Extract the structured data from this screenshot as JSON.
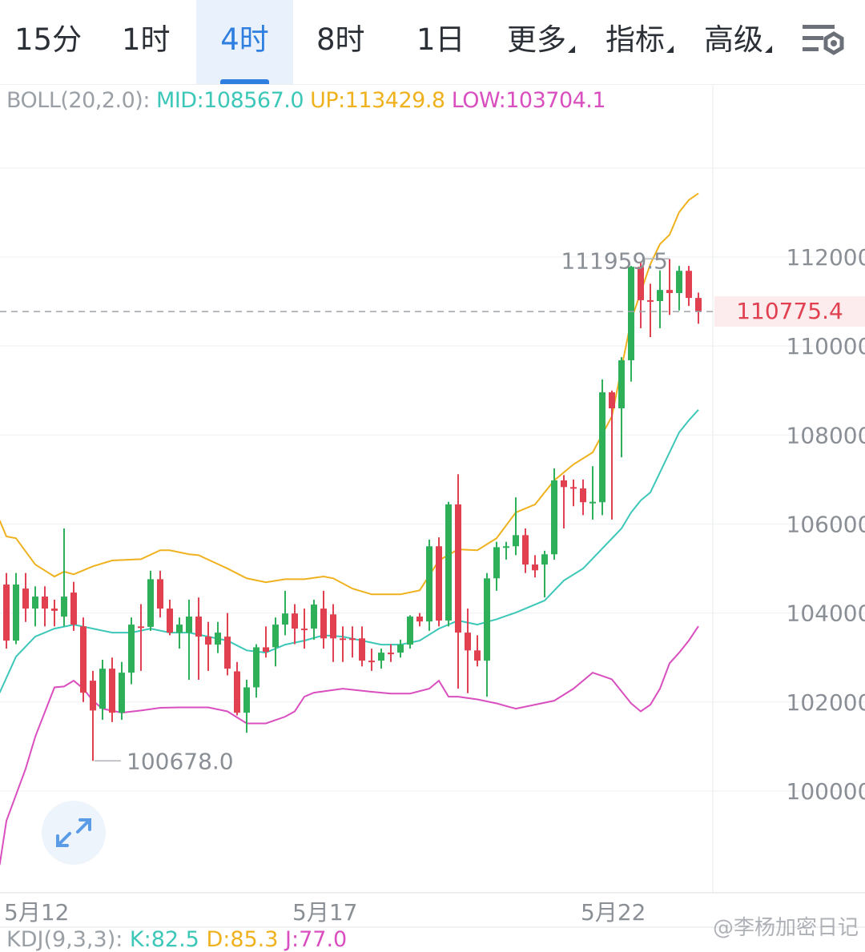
{
  "tabs": [
    {
      "label": "15分",
      "selected": false
    },
    {
      "label": "1时",
      "selected": false
    },
    {
      "label": "4时",
      "selected": true
    },
    {
      "label": "8时",
      "selected": false
    },
    {
      "label": "1日",
      "selected": false
    },
    {
      "label": "更多",
      "dropdown": true
    },
    {
      "label": "指标",
      "dropdown": true
    },
    {
      "label": "高级",
      "dropdown": true
    }
  ],
  "settings_icon": "chart-settings-icon",
  "boll_legend": {
    "name": "BOLL(20,2.0):",
    "mid": "MID:108567.0",
    "up": "UP:113429.8",
    "low": "LOW:103704.1"
  },
  "kdj_legend": {
    "name": "KDJ(9,3,3):",
    "k": "K:82.5",
    "d": "D:85.3",
    "j": "J:77.0"
  },
  "watermark": "@李杨加密日记",
  "current_price": "110775.4",
  "max_label": "111959.5",
  "min_label": "100678.0",
  "colors": {
    "up": "#2eaf5a",
    "down": "#e0404f",
    "mid": "#3cc7b8",
    "upper": "#efb21e",
    "lower": "#d94fbf",
    "accent": "#2f7fe0"
  },
  "chart_data": {
    "type": "candlestick",
    "interval": "4时",
    "ylim": [
      98000,
      114500
    ],
    "y_ticks": [
      100000,
      102000,
      104000,
      106000,
      108000,
      110000,
      112000
    ],
    "x_ticks": [
      {
        "index": 3,
        "label": "5月12"
      },
      {
        "index": 33,
        "label": "5月17"
      },
      {
        "index": 63,
        "label": "5月22"
      }
    ],
    "grid": true,
    "ohlc": [
      [
        104640,
        104900,
        103200,
        103380
      ],
      [
        103380,
        104900,
        103300,
        104640
      ],
      [
        104550,
        104900,
        103800,
        104100
      ],
      [
        104100,
        104600,
        103700,
        104370
      ],
      [
        104370,
        104600,
        103700,
        104100
      ],
      [
        104100,
        104300,
        103700,
        104050
      ],
      [
        103920,
        105900,
        103700,
        104370
      ],
      [
        104460,
        104700,
        103600,
        103740
      ],
      [
        103700,
        103900,
        102000,
        102210
      ],
      [
        102480,
        102700,
        100678,
        101810
      ],
      [
        101850,
        102950,
        101600,
        102750
      ],
      [
        102750,
        103000,
        101550,
        101760
      ],
      [
        101760,
        102900,
        101600,
        102660
      ],
      [
        102660,
        103900,
        102400,
        103740
      ],
      [
        103700,
        104200,
        102700,
        103680
      ],
      [
        103690,
        104950,
        103600,
        104760
      ],
      [
        104760,
        104950,
        103900,
        104100
      ],
      [
        104100,
        104300,
        103500,
        103560
      ],
      [
        103560,
        103900,
        103200,
        103740
      ],
      [
        103560,
        104300,
        102500,
        103920
      ],
      [
        103920,
        104350,
        102500,
        103470
      ],
      [
        103470,
        103800,
        102700,
        103290
      ],
      [
        103290,
        103800,
        103100,
        103560
      ],
      [
        103470,
        104000,
        102600,
        102750
      ],
      [
        102690,
        102900,
        101700,
        101760
      ],
      [
        101760,
        102500,
        101310,
        102330
      ],
      [
        102330,
        103300,
        102100,
        103230
      ],
      [
        103230,
        103700,
        103000,
        103130
      ],
      [
        103230,
        103900,
        102800,
        103740
      ],
      [
        103740,
        104500,
        103500,
        103990
      ],
      [
        103990,
        104200,
        103300,
        103650
      ],
      [
        103650,
        104100,
        103200,
        103620
      ],
      [
        103650,
        104300,
        103400,
        104190
      ],
      [
        104100,
        104500,
        103200,
        103430
      ],
      [
        103970,
        104200,
        102900,
        103430
      ],
      [
        103430,
        103700,
        102900,
        103400
      ],
      [
        103430,
        103700,
        103000,
        103420
      ],
      [
        103430,
        103700,
        102800,
        102930
      ],
      [
        102930,
        103200,
        102700,
        102900
      ],
      [
        102930,
        103200,
        102750,
        103110
      ],
      [
        103110,
        103300,
        102900,
        103100
      ],
      [
        103110,
        103400,
        103000,
        103290
      ],
      [
        103290,
        103950,
        103200,
        103920
      ],
      [
        103920,
        104000,
        103700,
        103810
      ],
      [
        103810,
        105650,
        103600,
        105500
      ],
      [
        105500,
        105700,
        103700,
        103830
      ],
      [
        103830,
        106500,
        103700,
        106440
      ],
      [
        106440,
        107120,
        102300,
        103560
      ],
      [
        103560,
        104100,
        102200,
        103160
      ],
      [
        103160,
        103500,
        102800,
        102930
      ],
      [
        102930,
        104900,
        102120,
        104780
      ],
      [
        104780,
        105600,
        104500,
        105480
      ],
      [
        105480,
        105600,
        105200,
        105500
      ],
      [
        105500,
        106600,
        105300,
        105750
      ],
      [
        105750,
        105900,
        104900,
        105090
      ],
      [
        105090,
        105300,
        104800,
        104960
      ],
      [
        105090,
        105400,
        104350,
        105320
      ],
      [
        105320,
        107250,
        105200,
        106980
      ],
      [
        106980,
        107100,
        105900,
        106830
      ],
      [
        106830,
        107000,
        106400,
        106800
      ],
      [
        106800,
        107000,
        106200,
        106490
      ],
      [
        106490,
        107300,
        106100,
        106500
      ],
      [
        106490,
        109250,
        106200,
        108960
      ],
      [
        108960,
        109000,
        106100,
        108600
      ],
      [
        108600,
        109750,
        107500,
        109680
      ],
      [
        109680,
        111800,
        109200,
        111780
      ],
      [
        111780,
        111900,
        110400,
        111030
      ],
      [
        111030,
        111400,
        110200,
        111010
      ],
      [
        111010,
        111700,
        110400,
        111260
      ],
      [
        111260,
        111959.5,
        110700,
        111190
      ],
      [
        111190,
        111800,
        110800,
        111690
      ],
      [
        111690,
        111800,
        110900,
        111080
      ],
      [
        111080,
        111200,
        110500,
        110775.4
      ]
    ],
    "boll_upper": [
      [
        -0.7,
        106080
      ],
      [
        0,
        105720
      ],
      [
        1,
        105680
      ],
      [
        3,
        105090
      ],
      [
        5,
        104820
      ],
      [
        6,
        104930
      ],
      [
        7,
        104870
      ],
      [
        9,
        105050
      ],
      [
        11,
        105180
      ],
      [
        14,
        105210
      ],
      [
        16,
        105410
      ],
      [
        17,
        105410
      ],
      [
        19,
        105320
      ],
      [
        20,
        105300
      ],
      [
        23,
        105000
      ],
      [
        25,
        104780
      ],
      [
        27,
        104690
      ],
      [
        29,
        104760
      ],
      [
        31,
        104760
      ],
      [
        33,
        104820
      ],
      [
        34,
        104780
      ],
      [
        36,
        104550
      ],
      [
        38,
        104420
      ],
      [
        41,
        104420
      ],
      [
        43,
        104510
      ],
      [
        45,
        105180
      ],
      [
        47,
        105430
      ],
      [
        49,
        105410
      ],
      [
        51,
        105680
      ],
      [
        53,
        106260
      ],
      [
        55,
        106440
      ],
      [
        57,
        106980
      ],
      [
        59,
        107340
      ],
      [
        61,
        107610
      ],
      [
        63,
        108420
      ],
      [
        64,
        109500
      ],
      [
        65,
        110580
      ],
      [
        67,
        111840
      ],
      [
        68,
        112290
      ],
      [
        69,
        112500
      ],
      [
        70,
        113010
      ],
      [
        71,
        113280
      ],
      [
        72,
        113430
      ]
    ],
    "boll_mid": [
      [
        -0.7,
        102210
      ],
      [
        1,
        103020
      ],
      [
        3,
        103470
      ],
      [
        5,
        103650
      ],
      [
        7,
        103740
      ],
      [
        9,
        103650
      ],
      [
        11,
        103560
      ],
      [
        13,
        103560
      ],
      [
        15,
        103650
      ],
      [
        17,
        103560
      ],
      [
        19,
        103560
      ],
      [
        21,
        103470
      ],
      [
        23,
        103380
      ],
      [
        25,
        103160
      ],
      [
        27,
        103110
      ],
      [
        29,
        103290
      ],
      [
        31,
        103380
      ],
      [
        33,
        103500
      ],
      [
        35,
        103470
      ],
      [
        37,
        103380
      ],
      [
        39,
        103290
      ],
      [
        41,
        103290
      ],
      [
        43,
        103380
      ],
      [
        45,
        103650
      ],
      [
        47,
        103830
      ],
      [
        49,
        103740
      ],
      [
        51,
        103860
      ],
      [
        53,
        104010
      ],
      [
        55,
        104190
      ],
      [
        56,
        104280
      ],
      [
        58,
        104730
      ],
      [
        60,
        105000
      ],
      [
        62,
        105450
      ],
      [
        64,
        105900
      ],
      [
        65,
        106260
      ],
      [
        66,
        106530
      ],
      [
        67,
        106710
      ],
      [
        68,
        107160
      ],
      [
        69,
        107610
      ],
      [
        70,
        108060
      ],
      [
        71,
        108330
      ],
      [
        72,
        108567
      ]
    ],
    "boll_lower": [
      [
        -0.7,
        98340
      ],
      [
        0,
        99330
      ],
      [
        2,
        100500
      ],
      [
        3,
        101220
      ],
      [
        5,
        102330
      ],
      [
        6,
        102350
      ],
      [
        7,
        102480
      ],
      [
        8,
        102300
      ],
      [
        9,
        102030
      ],
      [
        10,
        101850
      ],
      [
        12,
        101760
      ],
      [
        14,
        101810
      ],
      [
        16,
        101870
      ],
      [
        18,
        101880
      ],
      [
        21,
        101880
      ],
      [
        23,
        101790
      ],
      [
        25,
        101520
      ],
      [
        27,
        101520
      ],
      [
        29,
        101670
      ],
      [
        30,
        101790
      ],
      [
        31,
        102120
      ],
      [
        32,
        102210
      ],
      [
        35,
        102300
      ],
      [
        38,
        102230
      ],
      [
        40,
        102190
      ],
      [
        42,
        102190
      ],
      [
        44,
        102300
      ],
      [
        45,
        102480
      ],
      [
        46,
        102120
      ],
      [
        47,
        102120
      ],
      [
        49,
        102060
      ],
      [
        51,
        101970
      ],
      [
        53,
        101850
      ],
      [
        55,
        101940
      ],
      [
        57,
        102030
      ],
      [
        59,
        102300
      ],
      [
        61,
        102660
      ],
      [
        63,
        102510
      ],
      [
        65,
        101970
      ],
      [
        66,
        101790
      ],
      [
        67,
        101940
      ],
      [
        68,
        102300
      ],
      [
        69,
        102870
      ],
      [
        70,
        103110
      ],
      [
        71,
        103380
      ],
      [
        72,
        103704
      ]
    ]
  }
}
